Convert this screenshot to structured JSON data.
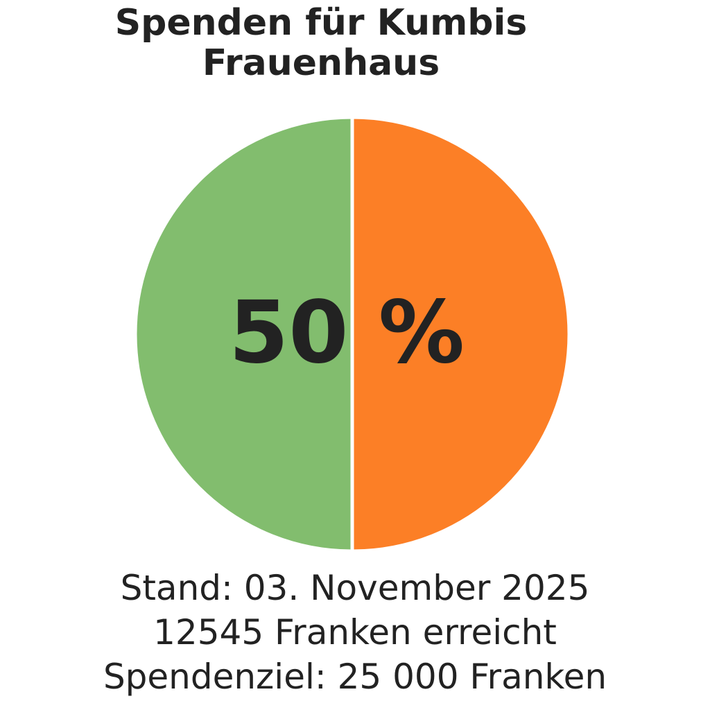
{
  "chart_data": {
    "type": "pie",
    "title_lines": [
      "Spenden für Kumbis",
      "Frauenhaus"
    ],
    "slices": [
      {
        "value": 50,
        "color": "#82bd6e"
      },
      {
        "value": 50,
        "color": "#fc7f26"
      }
    ],
    "center_label": "50 %",
    "annotations": [
      "Stand: 03. November 2025",
      "12545 Franken erreicht",
      "Spendenziel: 25 000 Franken"
    ],
    "legend": "none"
  }
}
